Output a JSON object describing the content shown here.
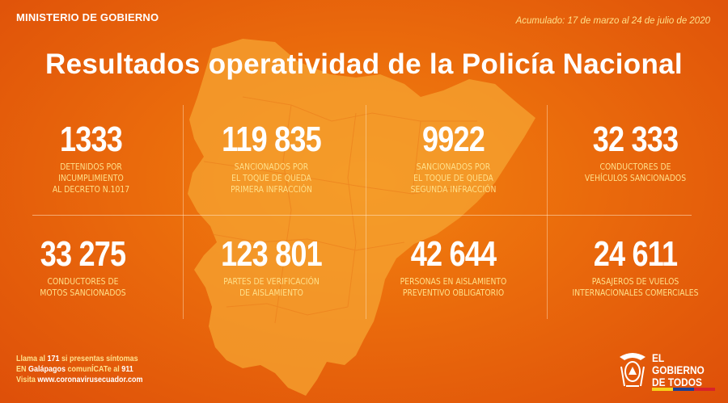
{
  "header": {
    "ministry": "MINISTERIO DE GOBIERNO",
    "accumulated": "Acumulado: 17 de marzo al 24 de julio de 2020"
  },
  "title": "Resultados operatividad de la Policía Nacional",
  "stats": [
    {
      "value": "1333",
      "label": "DETENIDOS POR\nINCUMPLIMIENTO\nAL DECRETO N.1017"
    },
    {
      "value": "119 835",
      "label": "SANCIONADOS POR\nEL TOQUE DE QUEDA\nPRIMERA INFRACCIÓN"
    },
    {
      "value": "9922",
      "label": "SANCIONADOS POR\nEL TOQUE DE QUEDA\nSEGUNDA INFRACCIÓN"
    },
    {
      "value": "32 333",
      "label": "CONDUCTORES DE\nVEHÍCULOS SANCIONADOS"
    },
    {
      "value": "33 275",
      "label": "CONDUCTORES DE\nMOTOS SANCIONADOS"
    },
    {
      "value": "123 801",
      "label": "PARTES DE VERIFICACIÓN\nDE AISLAMIENTO"
    },
    {
      "value": "42 644",
      "label": "PERSONAS EN AISLAMIENTO\nPREVENTIVO OBLIGATORIO"
    },
    {
      "value": "24 611",
      "label": "PASAJEROS DE VUELOS\nINTERNACIONALES COMERCIALES"
    }
  ],
  "footer": {
    "line1_a": "Llama al ",
    "line1_b": "171",
    "line1_c": " si presentas síntomas",
    "line2_a": "EN ",
    "line2_b": "Galápagos",
    "line2_c": " comunÍCATe al ",
    "line2_d": "911",
    "line3_a": "Visita ",
    "line3_b": "www.coronavirusecuador.com"
  },
  "logo": {
    "line1": "EL",
    "line2": "GOBIERNO",
    "line3": "DE TODOS",
    "flag_colors": [
      "#f7d21a",
      "#1c3f94",
      "#d8232a"
    ]
  },
  "colors": {
    "background": "#ea6a0c",
    "accent_text": "#ffe08a",
    "map": "#f6a431"
  }
}
